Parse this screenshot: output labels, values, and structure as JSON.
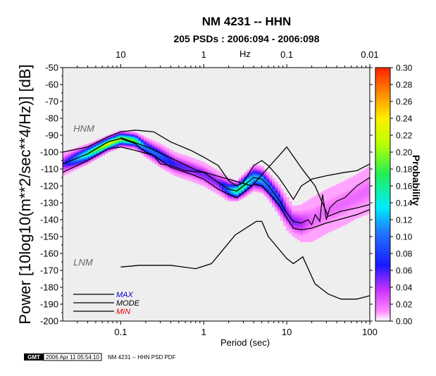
{
  "chart_data": {
    "type": "heatmap",
    "title": "NM 4231 -- HHN",
    "subtitle": "205 PSDs : 2006:094 - 2006:098",
    "xlabel": "Period (sec)",
    "ylabel": "Power [10log10(m**2/sec**4/Hz)] [dB]",
    "top_axis_label": "Hz",
    "colorbar_label": "Probability",
    "x_scale": "log",
    "xlim": [
      0.02,
      100
    ],
    "ylim": [
      -200,
      -50
    ],
    "x_ticks": [
      0.1,
      1,
      10,
      100
    ],
    "x_tick_labels": [
      "0.1",
      "1",
      "10",
      "100"
    ],
    "top_ticks": [
      0.1,
      1,
      10,
      100
    ],
    "top_tick_labels": [
      "10",
      "1",
      "0.1",
      "0.01"
    ],
    "y_ticks": [
      -50,
      -60,
      -70,
      -80,
      -90,
      -100,
      -110,
      -120,
      -130,
      -140,
      -150,
      -160,
      -170,
      -180,
      -190,
      -200
    ],
    "y_tick_labels": [
      "-50",
      "-60",
      "-70",
      "-80",
      "-90",
      "-100",
      "-110",
      "-120",
      "-130",
      "-140",
      "-150",
      "-160",
      "-170",
      "-180",
      "-190",
      "-200"
    ],
    "colorbar_range": [
      0,
      0.3
    ],
    "colorbar_ticks": [
      "0.30",
      "0.28",
      "0.26",
      "0.24",
      "0.22",
      "0.20",
      "0.18",
      "0.16",
      "0.14",
      "0.12",
      "0.10",
      "0.08",
      "0.06",
      "0.04",
      "0.02",
      "0.00"
    ],
    "legend_placement": "bottom-left",
    "legend": [
      {
        "label": "MAX",
        "color": "#0000cc"
      },
      {
        "label": "MODE",
        "color": "#000000"
      },
      {
        "label": "MIN",
        "color": "#ee0000"
      }
    ],
    "model_labels": [
      {
        "text": "HNM",
        "x": 0.028,
        "y": -88
      },
      {
        "text": "LNM",
        "x": 0.028,
        "y": -167
      }
    ],
    "series": [
      {
        "name": "HNM",
        "color": "#000000",
        "x": [
          0.1,
          0.22,
          0.8,
          3.8,
          10,
          15.6,
          21.9,
          31.6,
          45,
          70,
          100
        ],
        "y": [
          -91.5,
          -97.4,
          -110.5,
          -120,
          -97,
          -110.5,
          -120,
          -138,
          -135,
          -133,
          -131
        ]
      },
      {
        "name": "LNM",
        "color": "#000000",
        "x": [
          0.1,
          0.17,
          0.4,
          0.8,
          1.24,
          2.4,
          4.3,
          5,
          6,
          10,
          12,
          15.6,
          21.9,
          31.6,
          45,
          70,
          100
        ],
        "y": [
          -168,
          -167,
          -167,
          -169,
          -166,
          -149,
          -141,
          -141,
          -150,
          -163,
          -166,
          -162,
          -178,
          -184,
          -187,
          -187,
          -185
        ]
      },
      {
        "name": "MAX",
        "color": "#000000",
        "x": [
          0.02,
          0.04,
          0.07,
          0.1,
          0.15,
          0.25,
          0.4,
          0.7,
          1.0,
          1.5,
          2.0,
          2.5,
          3.0,
          4.0,
          5.0,
          6.0,
          8.0,
          10,
          12,
          15,
          20,
          30,
          50,
          70,
          100
        ],
        "y": [
          -100,
          -97,
          -91,
          -88,
          -87,
          -88,
          -94,
          -99,
          -103,
          -108,
          -117,
          -120,
          -118,
          -108,
          -105,
          -108,
          -115,
          -122,
          -128,
          -120,
          -116,
          -114,
          -112,
          -111,
          -107
        ]
      },
      {
        "name": "MODE",
        "color": "#000000",
        "x": [
          0.02,
          0.04,
          0.07,
          0.1,
          0.15,
          0.2,
          0.25,
          0.3,
          0.4,
          0.6,
          1.0,
          1.5,
          2.0,
          2.5,
          3.0,
          4.0,
          5.0,
          6.0,
          8.0,
          10,
          12,
          15,
          18,
          20,
          22,
          25,
          27,
          30,
          33,
          40,
          50,
          70,
          100
        ],
        "y": [
          -107,
          -101,
          -94,
          -92,
          -95,
          -100,
          -102,
          -107,
          -108,
          -111,
          -112,
          -118,
          -122,
          -123,
          -120,
          -115,
          -116,
          -120,
          -128,
          -136,
          -141,
          -142,
          -140,
          -143,
          -137,
          -141,
          -125,
          -140,
          -133,
          -129,
          -127,
          -120,
          -115
        ]
      },
      {
        "name": "MIN",
        "color": "#000000",
        "x": [
          0.02,
          0.04,
          0.07,
          0.1,
          0.15,
          0.25,
          0.4,
          0.7,
          1.0,
          1.5,
          2.0,
          2.5,
          3.0,
          4.0,
          5.0,
          6.0,
          8.0,
          10,
          12,
          15,
          20,
          30,
          50,
          70,
          100
        ],
        "y": [
          -112,
          -105,
          -98,
          -97,
          -99,
          -102,
          -109,
          -113,
          -116,
          -122,
          -125,
          -127,
          -124,
          -119,
          -120,
          -124,
          -131,
          -139,
          -145,
          -146,
          -145,
          -142,
          -139,
          -137,
          -134
        ]
      }
    ],
    "density_band": {
      "x": [
        0.02,
        0.04,
        0.07,
        0.1,
        0.15,
        0.2,
        0.3,
        0.45,
        0.7,
        1.0,
        1.5,
        2.0,
        2.5,
        3.0,
        4.0,
        5.0,
        6.0,
        8.0,
        10,
        12,
        15,
        20,
        30,
        50,
        70,
        100
      ],
      "center": [
        -107,
        -101,
        -95,
        -92,
        -93,
        -97,
        -102,
        -107,
        -110,
        -113,
        -118,
        -122,
        -123,
        -120,
        -115,
        -116,
        -120,
        -128,
        -136,
        -141,
        -142,
        -140,
        -135,
        -130,
        -126,
        -122
      ],
      "halfwidth": [
        7,
        6,
        5,
        5,
        5,
        6,
        7,
        7,
        7,
        7,
        7,
        7,
        6,
        7,
        8,
        8,
        8,
        9,
        10,
        9,
        11,
        13,
        13,
        13,
        13,
        14
      ],
      "peak": [
        0.05,
        0.16,
        0.22,
        0.2,
        0.18,
        0.1,
        0.09,
        0.06,
        0.05,
        0.05,
        0.05,
        0.1,
        0.17,
        0.17,
        0.12,
        0.12,
        0.1,
        0.09,
        0.05,
        0.05,
        0.04,
        0.02,
        0.02,
        0.02,
        0.02,
        0.02
      ]
    }
  },
  "footer": {
    "logo_text": "GMT",
    "timestamp": "2006 Apr 11 05:54:10",
    "caption": "NM 4231 -- HHN PSD PDF"
  }
}
